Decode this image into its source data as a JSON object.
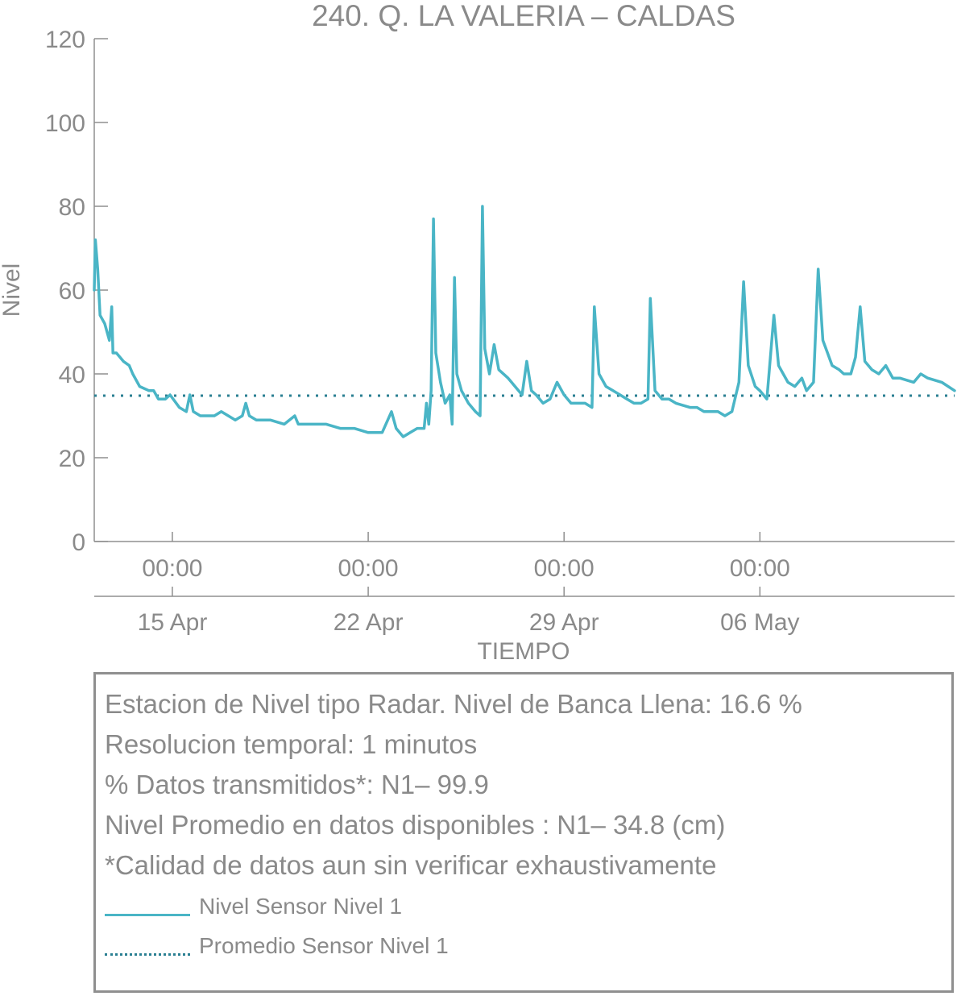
{
  "chart_data": {
    "type": "line",
    "title": "240. Q. LA VALERIA – CALDAS",
    "xlabel": "TIEMPO",
    "ylabel": "Nivel",
    "ylim": [
      0,
      120
    ],
    "xlim_days": [
      "2019-04-12T05:00",
      "2019-05-12T23:00"
    ],
    "y_ticks": [
      0,
      20,
      40,
      60,
      80,
      100,
      120
    ],
    "x_ticks": [
      {
        "date": "2019-04-15T00:00",
        "time_label": "00:00",
        "date_label": "15 Apr"
      },
      {
        "date": "2019-04-22T00:00",
        "time_label": "00:00",
        "date_label": "22 Apr"
      },
      {
        "date": "2019-04-29T00:00",
        "time_label": "00:00",
        "date_label": "29 Apr"
      },
      {
        "date": "2019-05-06T00:00",
        "time_label": "00:00",
        "date_label": "06 May"
      }
    ],
    "grid": false,
    "series": [
      {
        "name": "Nivel Sensor Nivel 1",
        "color": "#4ab5c6",
        "style": "solid",
        "points": [
          [
            "2019-04-12T05:00",
            60
          ],
          [
            "2019-04-12T06:00",
            72
          ],
          [
            "2019-04-12T08:00",
            65
          ],
          [
            "2019-04-12T10:00",
            54
          ],
          [
            "2019-04-12T14:00",
            52
          ],
          [
            "2019-04-12T18:00",
            48
          ],
          [
            "2019-04-12T20:00",
            56
          ],
          [
            "2019-04-12T21:00",
            45
          ],
          [
            "2019-04-13T00:00",
            45
          ],
          [
            "2019-04-13T06:00",
            43
          ],
          [
            "2019-04-13T11:00",
            42
          ],
          [
            "2019-04-13T14:00",
            40
          ],
          [
            "2019-04-13T20:00",
            37
          ],
          [
            "2019-04-14T04:00",
            36
          ],
          [
            "2019-04-14T08:00",
            36
          ],
          [
            "2019-04-14T12:00",
            34
          ],
          [
            "2019-04-14T18:00",
            34
          ],
          [
            "2019-04-14T22:00",
            35
          ],
          [
            "2019-04-15T06:00",
            32
          ],
          [
            "2019-04-15T12:00",
            31
          ],
          [
            "2019-04-15T15:00",
            35
          ],
          [
            "2019-04-15T18:00",
            31
          ],
          [
            "2019-04-16T00:00",
            30
          ],
          [
            "2019-04-16T12:00",
            30
          ],
          [
            "2019-04-16T18:00",
            31
          ],
          [
            "2019-04-17T00:00",
            30
          ],
          [
            "2019-04-17T06:00",
            29
          ],
          [
            "2019-04-17T12:00",
            30
          ],
          [
            "2019-04-17T15:00",
            33
          ],
          [
            "2019-04-17T18:00",
            30
          ],
          [
            "2019-04-18T00:00",
            29
          ],
          [
            "2019-04-18T12:00",
            29
          ],
          [
            "2019-04-19T00:00",
            28
          ],
          [
            "2019-04-19T09:00",
            30
          ],
          [
            "2019-04-19T12:00",
            28
          ],
          [
            "2019-04-20T00:00",
            28
          ],
          [
            "2019-04-20T12:00",
            28
          ],
          [
            "2019-04-21T00:00",
            27
          ],
          [
            "2019-04-21T12:00",
            27
          ],
          [
            "2019-04-22T00:00",
            26
          ],
          [
            "2019-04-22T12:00",
            26
          ],
          [
            "2019-04-22T20:00",
            31
          ],
          [
            "2019-04-23T00:00",
            27
          ],
          [
            "2019-04-23T06:00",
            25
          ],
          [
            "2019-04-23T12:00",
            26
          ],
          [
            "2019-04-23T18:00",
            27
          ],
          [
            "2019-04-24T00:00",
            27
          ],
          [
            "2019-04-24T02:00",
            33
          ],
          [
            "2019-04-24T04:00",
            28
          ],
          [
            "2019-04-24T06:00",
            36
          ],
          [
            "2019-04-24T08:00",
            77
          ],
          [
            "2019-04-24T10:00",
            45
          ],
          [
            "2019-04-24T14:00",
            38
          ],
          [
            "2019-04-24T18:00",
            33
          ],
          [
            "2019-04-24T22:00",
            35
          ],
          [
            "2019-04-25T00:00",
            28
          ],
          [
            "2019-04-25T02:00",
            63
          ],
          [
            "2019-04-25T04:00",
            40
          ],
          [
            "2019-04-25T08:00",
            36
          ],
          [
            "2019-04-25T14:00",
            33
          ],
          [
            "2019-04-25T20:00",
            31
          ],
          [
            "2019-04-26T00:00",
            30
          ],
          [
            "2019-04-26T02:00",
            80
          ],
          [
            "2019-04-26T04:00",
            46
          ],
          [
            "2019-04-26T08:00",
            40
          ],
          [
            "2019-04-26T12:00",
            47
          ],
          [
            "2019-04-26T16:00",
            41
          ],
          [
            "2019-04-27T00:00",
            39
          ],
          [
            "2019-04-27T06:00",
            37
          ],
          [
            "2019-04-27T12:00",
            35
          ],
          [
            "2019-04-27T16:00",
            43
          ],
          [
            "2019-04-27T20:00",
            36
          ],
          [
            "2019-04-28T00:00",
            35
          ],
          [
            "2019-04-28T06:00",
            33
          ],
          [
            "2019-04-28T12:00",
            34
          ],
          [
            "2019-04-28T18:00",
            38
          ],
          [
            "2019-04-29T00:00",
            35
          ],
          [
            "2019-04-29T06:00",
            33
          ],
          [
            "2019-04-29T12:00",
            33
          ],
          [
            "2019-04-29T18:00",
            33
          ],
          [
            "2019-04-30T00:00",
            32
          ],
          [
            "2019-04-30T02:00",
            56
          ],
          [
            "2019-04-30T06:00",
            40
          ],
          [
            "2019-04-30T12:00",
            37
          ],
          [
            "2019-04-30T18:00",
            36
          ],
          [
            "2019-05-01T00:00",
            35
          ],
          [
            "2019-05-01T06:00",
            34
          ],
          [
            "2019-05-01T12:00",
            33
          ],
          [
            "2019-05-01T18:00",
            33
          ],
          [
            "2019-05-02T00:00",
            34
          ],
          [
            "2019-05-02T02:00",
            58
          ],
          [
            "2019-05-02T06:00",
            36
          ],
          [
            "2019-05-02T12:00",
            34
          ],
          [
            "2019-05-02T18:00",
            34
          ],
          [
            "2019-05-03T00:00",
            33
          ],
          [
            "2019-05-03T12:00",
            32
          ],
          [
            "2019-05-03T18:00",
            32
          ],
          [
            "2019-05-04T00:00",
            31
          ],
          [
            "2019-05-04T12:00",
            31
          ],
          [
            "2019-05-04T18:00",
            30
          ],
          [
            "2019-05-05T00:00",
            31
          ],
          [
            "2019-05-05T06:00",
            38
          ],
          [
            "2019-05-05T10:00",
            62
          ],
          [
            "2019-05-05T14:00",
            42
          ],
          [
            "2019-05-05T20:00",
            37
          ],
          [
            "2019-05-06T00:00",
            36
          ],
          [
            "2019-05-06T06:00",
            34
          ],
          [
            "2019-05-06T12:00",
            54
          ],
          [
            "2019-05-06T16:00",
            42
          ],
          [
            "2019-05-06T20:00",
            40
          ],
          [
            "2019-05-07T00:00",
            38
          ],
          [
            "2019-05-07T06:00",
            37
          ],
          [
            "2019-05-07T12:00",
            39
          ],
          [
            "2019-05-07T16:00",
            36
          ],
          [
            "2019-05-07T22:00",
            38
          ],
          [
            "2019-05-08T02:00",
            65
          ],
          [
            "2019-05-08T06:00",
            48
          ],
          [
            "2019-05-08T10:00",
            45
          ],
          [
            "2019-05-08T14:00",
            42
          ],
          [
            "2019-05-08T20:00",
            41
          ],
          [
            "2019-05-09T00:00",
            40
          ],
          [
            "2019-05-09T06:00",
            40
          ],
          [
            "2019-05-09T10:00",
            44
          ],
          [
            "2019-05-09T14:00",
            56
          ],
          [
            "2019-05-09T18:00",
            43
          ],
          [
            "2019-05-10T00:00",
            41
          ],
          [
            "2019-05-10T06:00",
            40
          ],
          [
            "2019-05-10T12:00",
            42
          ],
          [
            "2019-05-10T18:00",
            39
          ],
          [
            "2019-05-11T00:00",
            39
          ],
          [
            "2019-05-11T12:00",
            38
          ],
          [
            "2019-05-11T18:00",
            40
          ],
          [
            "2019-05-12T00:00",
            39
          ],
          [
            "2019-05-12T12:00",
            38
          ],
          [
            "2019-05-12T23:00",
            36
          ]
        ]
      },
      {
        "name": "Promedio Sensor Nivel 1",
        "color": "#2a7f92",
        "style": "dotted",
        "value": 34.8
      }
    ]
  },
  "info": {
    "lines": [
      "Estacion de Nivel tipo Radar. Nivel de Banca Llena: 16.6 %",
      "Resolucion temporal: 1 minutos",
      "% Datos transmitidos*: N1– 99.9",
      "Nivel Promedio en datos disponibles : N1– 34.8 (cm)",
      "*Calidad de datos aun sin verificar exhaustivamente"
    ]
  },
  "legend": {
    "items": [
      {
        "label": "Nivel Sensor Nivel 1",
        "style": "solid",
        "color": "#4ab5c6"
      },
      {
        "label": "Promedio Sensor Nivel 1",
        "style": "dotted",
        "color": "#2a7f92"
      }
    ]
  }
}
